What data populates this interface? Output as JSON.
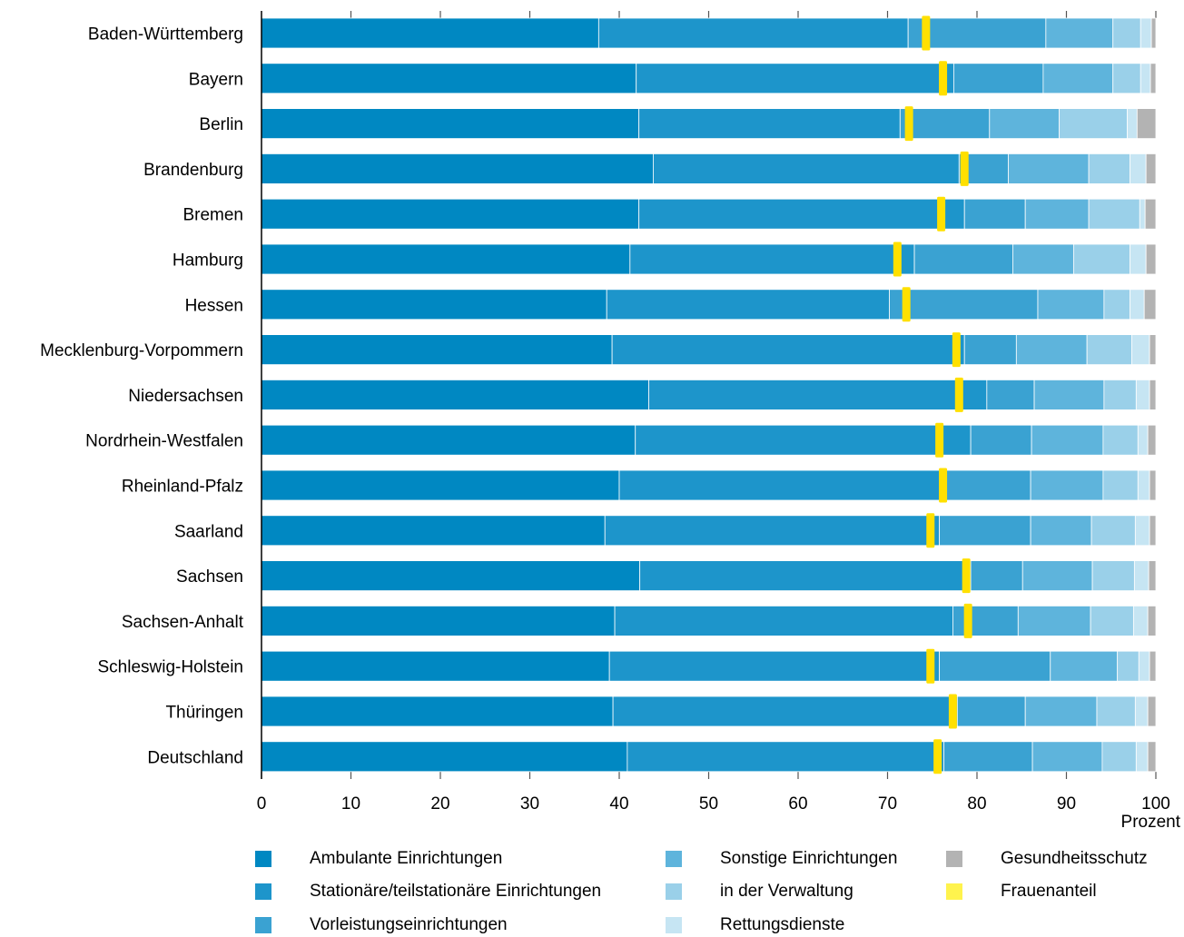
{
  "chart_data": {
    "type": "bar",
    "orientation": "horizontal",
    "stacked": true,
    "categories": [
      "Baden-Württemberg",
      "Bayern",
      "Berlin",
      "Brandenburg",
      "Bremen",
      "Hamburg",
      "Hessen",
      "Mecklenburg-Vorpommern",
      "Niedersachsen",
      "Nordrhein-Westfalen",
      "Rheinland-Pfalz",
      "Saarland",
      "Sachsen",
      "Sachsen-Anhalt",
      "Schleswig-Holstein",
      "Thüringen",
      "Deutschland"
    ],
    "series": [
      {
        "name": "Ambulante Einrichtungen",
        "color": "#0088c2",
        "values": [
          37.7,
          41.9,
          42.2,
          43.8,
          42.2,
          41.2,
          38.6,
          39.2,
          43.3,
          41.8,
          40.0,
          38.4,
          42.3,
          39.5,
          38.9,
          39.3,
          40.9
        ]
      },
      {
        "name": "Stationäre/teilstationäre Einrichtungen",
        "color": "#1d95cb",
        "values": [
          34.6,
          35.5,
          29.2,
          34.2,
          36.4,
          31.8,
          31.6,
          39.4,
          37.8,
          37.5,
          36.5,
          37.4,
          37.0,
          37.8,
          36.9,
          38.5,
          35.4
        ]
      },
      {
        "name": "Vorleistungseinrichtungen",
        "color": "#3aa2d2",
        "values": [
          15.4,
          10.0,
          10.0,
          5.5,
          6.8,
          11.0,
          16.6,
          5.8,
          5.3,
          6.8,
          9.5,
          10.2,
          5.8,
          7.3,
          12.4,
          7.6,
          9.9
        ]
      },
      {
        "name": "Sonstige Einrichtungen",
        "color": "#5eb4dc",
        "values": [
          7.5,
          7.8,
          7.8,
          9.0,
          7.1,
          6.8,
          7.4,
          7.9,
          7.8,
          8.0,
          8.1,
          6.8,
          7.8,
          8.1,
          7.5,
          8.0,
          7.8
        ]
      },
      {
        "name": "in der Verwaltung",
        "color": "#9ad0e9",
        "values": [
          3.1,
          3.1,
          7.6,
          4.6,
          5.7,
          6.3,
          2.9,
          5.0,
          3.6,
          3.9,
          3.9,
          4.9,
          4.7,
          4.8,
          2.4,
          4.3,
          3.8
        ]
      },
      {
        "name": "Rettungsdienste",
        "color": "#c6e5f3",
        "values": [
          1.2,
          1.1,
          1.1,
          1.8,
          0.6,
          1.8,
          1.6,
          2.0,
          1.5,
          1.1,
          1.3,
          1.6,
          1.6,
          1.6,
          1.2,
          1.4,
          1.3
        ]
      },
      {
        "name": "Gesundheitsschutz",
        "color": "#b3b3b3",
        "values": [
          0.5,
          0.6,
          2.1,
          1.1,
          1.2,
          1.1,
          1.3,
          0.7,
          0.7,
          0.9,
          0.7,
          0.7,
          0.8,
          0.9,
          0.7,
          0.9,
          0.9
        ]
      }
    ],
    "overlay": {
      "name": "Frauenanteil",
      "color": "#ffe000",
      "legend_color": "#fff34d",
      "values": [
        74.3,
        76.2,
        72.4,
        78.6,
        76.0,
        71.1,
        72.1,
        77.7,
        78.0,
        75.8,
        76.2,
        74.8,
        78.8,
        79.0,
        74.8,
        77.3,
        75.6
      ]
    },
    "xlim": [
      0,
      100
    ],
    "xticks": [
      0,
      10,
      20,
      30,
      40,
      50,
      60,
      70,
      80,
      90,
      100
    ],
    "x_unit": "Prozent",
    "grid": "vertical tick marks",
    "legend_position": "bottom"
  }
}
